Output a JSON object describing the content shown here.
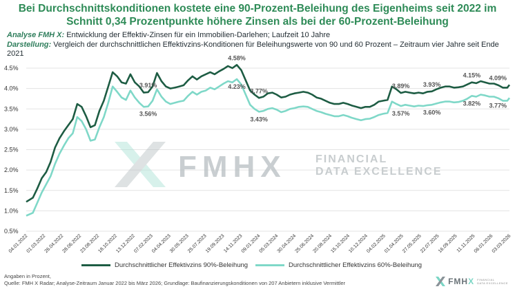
{
  "title": "Bei Durchschnittskonditionen kostete eine 90-Prozent-Beleihung des Eigenheims seit 2022 im Schnitt 0,34 Prozentpunkte höhere Zinsen als bei der 60-Prozent-Beleihung",
  "subtitle": {
    "analysis_label": "Analyse FMH X:",
    "analysis_text": "Entwicklung der Effektiv-Zinsen für ein Immobilien-Darlehen; Laufzeit 10 Jahre",
    "presentation_label": "Darstellung:",
    "presentation_text": "Vergleich der durchschnittlichen Effektivzins-Konditionen für Beleihungswerte von 90 und 60 Prozent – Zeitraum vier Jahre seit Ende 2021"
  },
  "footer": {
    "line1": "Angaben in Prozent,",
    "line2": "Quelle: FMH X Radar; Analyse-Zeitraum Januar 2022 bis März 2026; Grundlage: Baufinanzierungskonditionen von 207 Anbietern inklusive Vermittler"
  },
  "watermark": {
    "brand": "FMHX",
    "tagline_line1": "FINANCIAL",
    "tagline_line2": "DATA EXCELLENCE"
  },
  "brand_logo": {
    "name_main": "FMH",
    "name_accent": "X",
    "tag_line1": "FINANCIAL",
    "tag_line2": "DATA EXCELLENCE"
  },
  "colors": {
    "title": "#2e8b57",
    "series_90": "#1d5c43",
    "series_60": "#7fd8c8",
    "grid": "#e3e3e3",
    "watermark": "#c7ccce"
  },
  "chart_data": {
    "type": "line",
    "title": "",
    "xlabel": "",
    "ylabel": "",
    "ylim": [
      0.5,
      4.5
    ],
    "yticks": [
      "0.5%",
      "1.0%",
      "1.5%",
      "2.0%",
      "2.5%",
      "3.0%",
      "3.5%",
      "4.0%",
      "4.5%"
    ],
    "grid": true,
    "legend_position": "bottom",
    "x_tick_labels": [
      "04.01.2022",
      "01.03.2022",
      "26.04.2022",
      "28.06.2022",
      "23.08.2022",
      "18.10.2022",
      "13.12.2022",
      "07.02.2023",
      "04.04.2023",
      "30.05.2023",
      "25.07.2023",
      "19.09.2023",
      "14.11.2023",
      "09.01.2024",
      "05.03.2024",
      "30.04.2024",
      "25.06.2024",
      "20.08.2024",
      "15.10.2024",
      "10.12.2024",
      "04.02.2025",
      "01.04.2025",
      "27.05.2025",
      "22.07.2025",
      "16.09.2025",
      "11.11.2025",
      "06.01.2026",
      "03.03.2026"
    ],
    "x_range": [
      "2022-01-04",
      "2026-03-10"
    ],
    "series": [
      {
        "name": "Durchschnittlicher Effektivzins 90%-Beleihung",
        "points": [
          [
            "2022-01-04",
            1.22
          ],
          [
            "2022-01-25",
            1.32
          ],
          [
            "2022-02-08",
            1.55
          ],
          [
            "2022-02-22",
            1.8
          ],
          [
            "2022-03-08",
            1.95
          ],
          [
            "2022-03-22",
            2.2
          ],
          [
            "2022-04-05",
            2.55
          ],
          [
            "2022-04-19",
            2.78
          ],
          [
            "2022-05-03",
            2.95
          ],
          [
            "2022-05-17",
            3.1
          ],
          [
            "2022-05-31",
            3.25
          ],
          [
            "2022-06-14",
            3.62
          ],
          [
            "2022-06-28",
            3.55
          ],
          [
            "2022-07-12",
            3.32
          ],
          [
            "2022-07-26",
            3.05
          ],
          [
            "2022-08-09",
            3.1
          ],
          [
            "2022-08-23",
            3.45
          ],
          [
            "2022-09-06",
            3.7
          ],
          [
            "2022-09-20",
            4.05
          ],
          [
            "2022-10-04",
            4.4
          ],
          [
            "2022-10-18",
            4.3
          ],
          [
            "2022-11-01",
            4.15
          ],
          [
            "2022-11-15",
            4.12
          ],
          [
            "2022-11-29",
            4.35
          ],
          [
            "2022-12-13",
            4.15
          ],
          [
            "2022-12-27",
            4.05
          ],
          [
            "2023-01-10",
            3.9
          ],
          [
            "2023-01-24",
            3.91
          ],
          [
            "2023-02-07",
            4.05
          ],
          [
            "2023-02-21",
            4.38
          ],
          [
            "2023-03-07",
            4.18
          ],
          [
            "2023-03-21",
            4.05
          ],
          [
            "2023-04-04",
            4.0
          ],
          [
            "2023-04-18",
            4.02
          ],
          [
            "2023-05-02",
            4.05
          ],
          [
            "2023-05-16",
            4.08
          ],
          [
            "2023-05-30",
            4.2
          ],
          [
            "2023-06-13",
            4.3
          ],
          [
            "2023-06-27",
            4.22
          ],
          [
            "2023-07-11",
            4.3
          ],
          [
            "2023-07-25",
            4.35
          ],
          [
            "2023-08-08",
            4.4
          ],
          [
            "2023-08-22",
            4.35
          ],
          [
            "2023-09-05",
            4.42
          ],
          [
            "2023-09-19",
            4.48
          ],
          [
            "2023-10-03",
            4.55
          ],
          [
            "2023-10-17",
            4.5
          ],
          [
            "2023-10-31",
            4.58
          ],
          [
            "2023-11-14",
            4.45
          ],
          [
            "2023-11-28",
            4.2
          ],
          [
            "2023-12-12",
            3.95
          ],
          [
            "2023-12-26",
            3.85
          ],
          [
            "2024-01-09",
            3.77
          ],
          [
            "2024-01-23",
            3.8
          ],
          [
            "2024-02-06",
            3.88
          ],
          [
            "2024-02-20",
            3.9
          ],
          [
            "2024-03-05",
            3.85
          ],
          [
            "2024-03-19",
            3.78
          ],
          [
            "2024-04-02",
            3.8
          ],
          [
            "2024-04-16",
            3.85
          ],
          [
            "2024-04-30",
            3.88
          ],
          [
            "2024-05-14",
            3.9
          ],
          [
            "2024-05-28",
            3.92
          ],
          [
            "2024-06-11",
            3.9
          ],
          [
            "2024-06-25",
            3.85
          ],
          [
            "2024-07-09",
            3.78
          ],
          [
            "2024-07-23",
            3.75
          ],
          [
            "2024-08-06",
            3.7
          ],
          [
            "2024-08-20",
            3.65
          ],
          [
            "2024-09-03",
            3.62
          ],
          [
            "2024-09-17",
            3.62
          ],
          [
            "2024-10-01",
            3.65
          ],
          [
            "2024-10-15",
            3.62
          ],
          [
            "2024-10-29",
            3.58
          ],
          [
            "2024-11-12",
            3.55
          ],
          [
            "2024-11-26",
            3.52
          ],
          [
            "2024-12-10",
            3.55
          ],
          [
            "2024-12-24",
            3.55
          ],
          [
            "2025-01-07",
            3.6
          ],
          [
            "2025-01-21",
            3.68
          ],
          [
            "2025-02-04",
            3.7
          ],
          [
            "2025-02-18",
            3.72
          ],
          [
            "2025-03-04",
            4.05
          ],
          [
            "2025-03-18",
            3.98
          ],
          [
            "2025-04-01",
            3.89
          ],
          [
            "2025-04-15",
            3.92
          ],
          [
            "2025-04-29",
            3.9
          ],
          [
            "2025-05-13",
            3.88
          ],
          [
            "2025-05-27",
            3.9
          ],
          [
            "2025-06-10",
            3.88
          ],
          [
            "2025-06-24",
            3.92
          ],
          [
            "2025-07-08",
            3.93
          ],
          [
            "2025-07-22",
            3.98
          ],
          [
            "2025-08-05",
            4.02
          ],
          [
            "2025-08-19",
            4.05
          ],
          [
            "2025-09-02",
            4.05
          ],
          [
            "2025-09-16",
            4.02
          ],
          [
            "2025-09-30",
            4.03
          ],
          [
            "2025-10-14",
            4.05
          ],
          [
            "2025-10-28",
            4.1
          ],
          [
            "2025-11-11",
            4.15
          ],
          [
            "2025-11-25",
            4.13
          ],
          [
            "2025-12-09",
            4.18
          ],
          [
            "2025-12-23",
            4.15
          ],
          [
            "2026-01-06",
            4.12
          ],
          [
            "2026-01-20",
            4.12
          ],
          [
            "2026-02-03",
            4.08
          ],
          [
            "2026-02-17",
            4.02
          ],
          [
            "2026-03-03",
            4.02
          ],
          [
            "2026-03-10",
            4.09
          ]
        ]
      },
      {
        "name": "Durchschnittlicher Effektivzins 60%-Beleihung",
        "points": [
          [
            "2022-01-04",
            0.88
          ],
          [
            "2022-01-25",
            0.95
          ],
          [
            "2022-02-08",
            1.2
          ],
          [
            "2022-02-22",
            1.45
          ],
          [
            "2022-03-08",
            1.65
          ],
          [
            "2022-03-22",
            1.85
          ],
          [
            "2022-04-05",
            2.15
          ],
          [
            "2022-04-19",
            2.4
          ],
          [
            "2022-05-03",
            2.6
          ],
          [
            "2022-05-17",
            2.78
          ],
          [
            "2022-05-31",
            2.9
          ],
          [
            "2022-06-14",
            3.3
          ],
          [
            "2022-06-28",
            3.2
          ],
          [
            "2022-07-12",
            3.0
          ],
          [
            "2022-07-26",
            2.72
          ],
          [
            "2022-08-09",
            2.75
          ],
          [
            "2022-08-23",
            3.05
          ],
          [
            "2022-09-06",
            3.3
          ],
          [
            "2022-09-20",
            3.65
          ],
          [
            "2022-10-04",
            4.05
          ],
          [
            "2022-10-18",
            3.92
          ],
          [
            "2022-11-01",
            3.78
          ],
          [
            "2022-11-15",
            3.72
          ],
          [
            "2022-11-29",
            3.95
          ],
          [
            "2022-12-13",
            3.78
          ],
          [
            "2022-12-27",
            3.65
          ],
          [
            "2023-01-10",
            3.55
          ],
          [
            "2023-01-24",
            3.56
          ],
          [
            "2023-02-07",
            3.7
          ],
          [
            "2023-02-21",
            3.98
          ],
          [
            "2023-03-07",
            3.8
          ],
          [
            "2023-03-21",
            3.68
          ],
          [
            "2023-04-04",
            3.62
          ],
          [
            "2023-04-18",
            3.65
          ],
          [
            "2023-05-02",
            3.68
          ],
          [
            "2023-05-16",
            3.7
          ],
          [
            "2023-05-30",
            3.82
          ],
          [
            "2023-06-13",
            3.92
          ],
          [
            "2023-06-27",
            3.85
          ],
          [
            "2023-07-11",
            3.92
          ],
          [
            "2023-07-25",
            3.95
          ],
          [
            "2023-08-08",
            4.02
          ],
          [
            "2023-08-22",
            3.98
          ],
          [
            "2023-09-05",
            4.05
          ],
          [
            "2023-09-19",
            4.12
          ],
          [
            "2023-10-03",
            4.18
          ],
          [
            "2023-10-17",
            4.15
          ],
          [
            "2023-10-31",
            4.23
          ],
          [
            "2023-11-14",
            4.1
          ],
          [
            "2023-11-28",
            3.85
          ],
          [
            "2023-12-12",
            3.6
          ],
          [
            "2023-12-26",
            3.5
          ],
          [
            "2024-01-09",
            3.43
          ],
          [
            "2024-01-23",
            3.45
          ],
          [
            "2024-02-06",
            3.5
          ],
          [
            "2024-02-20",
            3.52
          ],
          [
            "2024-03-05",
            3.48
          ],
          [
            "2024-03-19",
            3.42
          ],
          [
            "2024-04-02",
            3.45
          ],
          [
            "2024-04-16",
            3.5
          ],
          [
            "2024-04-30",
            3.52
          ],
          [
            "2024-05-14",
            3.55
          ],
          [
            "2024-05-28",
            3.56
          ],
          [
            "2024-06-11",
            3.55
          ],
          [
            "2024-06-25",
            3.5
          ],
          [
            "2024-07-09",
            3.45
          ],
          [
            "2024-07-23",
            3.42
          ],
          [
            "2024-08-06",
            3.38
          ],
          [
            "2024-08-20",
            3.35
          ],
          [
            "2024-09-03",
            3.32
          ],
          [
            "2024-09-17",
            3.32
          ],
          [
            "2024-10-01",
            3.35
          ],
          [
            "2024-10-15",
            3.32
          ],
          [
            "2024-10-29",
            3.28
          ],
          [
            "2024-11-12",
            3.25
          ],
          [
            "2024-11-26",
            3.22
          ],
          [
            "2024-12-10",
            3.25
          ],
          [
            "2024-12-24",
            3.26
          ],
          [
            "2025-01-07",
            3.3
          ],
          [
            "2025-01-21",
            3.35
          ],
          [
            "2025-02-04",
            3.38
          ],
          [
            "2025-02-18",
            3.4
          ],
          [
            "2025-03-04",
            3.68
          ],
          [
            "2025-03-18",
            3.62
          ],
          [
            "2025-04-01",
            3.57
          ],
          [
            "2025-04-15",
            3.6
          ],
          [
            "2025-04-29",
            3.58
          ],
          [
            "2025-05-13",
            3.56
          ],
          [
            "2025-05-27",
            3.58
          ],
          [
            "2025-06-10",
            3.57
          ],
          [
            "2025-06-24",
            3.59
          ],
          [
            "2025-07-08",
            3.6
          ],
          [
            "2025-07-22",
            3.63
          ],
          [
            "2025-08-05",
            3.66
          ],
          [
            "2025-08-19",
            3.68
          ],
          [
            "2025-09-02",
            3.68
          ],
          [
            "2025-09-16",
            3.66
          ],
          [
            "2025-09-30",
            3.67
          ],
          [
            "2025-10-14",
            3.7
          ],
          [
            "2025-10-28",
            3.75
          ],
          [
            "2025-11-11",
            3.82
          ],
          [
            "2025-11-25",
            3.8
          ],
          [
            "2025-12-09",
            3.85
          ],
          [
            "2025-12-23",
            3.83
          ],
          [
            "2026-01-06",
            3.8
          ],
          [
            "2026-01-20",
            3.8
          ],
          [
            "2026-02-03",
            3.76
          ],
          [
            "2026-02-17",
            3.7
          ],
          [
            "2026-03-03",
            3.7
          ],
          [
            "2026-03-10",
            3.77
          ]
        ]
      }
    ],
    "annotations": [
      {
        "text": "3.91%",
        "x": "2023-01-24",
        "y": 3.91,
        "series": 0
      },
      {
        "text": "4.58%",
        "x": "2023-10-31",
        "y": 4.58,
        "series": 0
      },
      {
        "text": "3.77%",
        "x": "2024-01-09",
        "y": 3.77,
        "series": 0
      },
      {
        "text": "3.89%",
        "x": "2025-04-01",
        "y": 3.89,
        "series": 0
      },
      {
        "text": "3.93%",
        "x": "2025-07-08",
        "y": 3.93,
        "series": 0
      },
      {
        "text": "4.15%",
        "x": "2025-11-11",
        "y": 4.15,
        "series": 0
      },
      {
        "text": "4.09%",
        "x": "2026-03-10",
        "y": 4.09,
        "series": 0
      },
      {
        "text": "3.56%",
        "x": "2023-01-24",
        "y": 3.56,
        "series": 1
      },
      {
        "text": "4.23%",
        "x": "2023-10-31",
        "y": 4.23,
        "series": 1
      },
      {
        "text": "3.43%",
        "x": "2024-01-09",
        "y": 3.43,
        "series": 1
      },
      {
        "text": "3.57%",
        "x": "2025-04-01",
        "y": 3.57,
        "series": 1
      },
      {
        "text": "3.60%",
        "x": "2025-07-08",
        "y": 3.6,
        "series": 1
      },
      {
        "text": "3.82%",
        "x": "2025-11-11",
        "y": 3.82,
        "series": 1
      },
      {
        "text": "3.77%",
        "x": "2026-03-10",
        "y": 3.77,
        "series": 1
      }
    ]
  }
}
